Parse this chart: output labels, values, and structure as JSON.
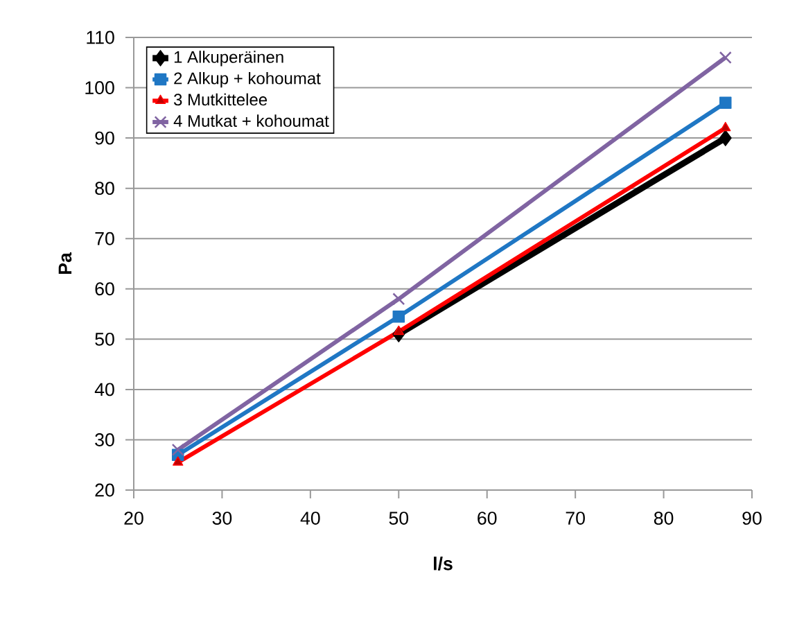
{
  "chart_data": {
    "type": "line",
    "xlabel": "l/s",
    "ylabel": "Pa",
    "x": [
      25,
      50,
      87
    ],
    "series": [
      {
        "name": "1 Alkuperäinen",
        "color": "#000000",
        "marker": "diamond",
        "values": [
          null,
          51,
          90
        ]
      },
      {
        "name": "2 Alkup + kohoumat",
        "color": "#1f77c4",
        "marker": "square",
        "values": [
          27,
          54.5,
          97
        ]
      },
      {
        "name": "3 Mutkittelee",
        "color": "#ff0000",
        "marker": "triangle",
        "values": [
          25.5,
          51.5,
          92
        ]
      },
      {
        "name": "4 Mutkat + kohoumat",
        "color": "#8064a2",
        "marker": "cross",
        "values": [
          28,
          58,
          106
        ]
      }
    ],
    "xlim": [
      20,
      90
    ],
    "xticks": [
      20,
      30,
      40,
      50,
      60,
      70,
      80,
      90
    ],
    "ylim": [
      20,
      110
    ],
    "yticks": [
      20,
      30,
      40,
      50,
      60,
      70,
      80,
      90,
      100,
      110
    ],
    "grid": "y",
    "legend": "top left"
  }
}
